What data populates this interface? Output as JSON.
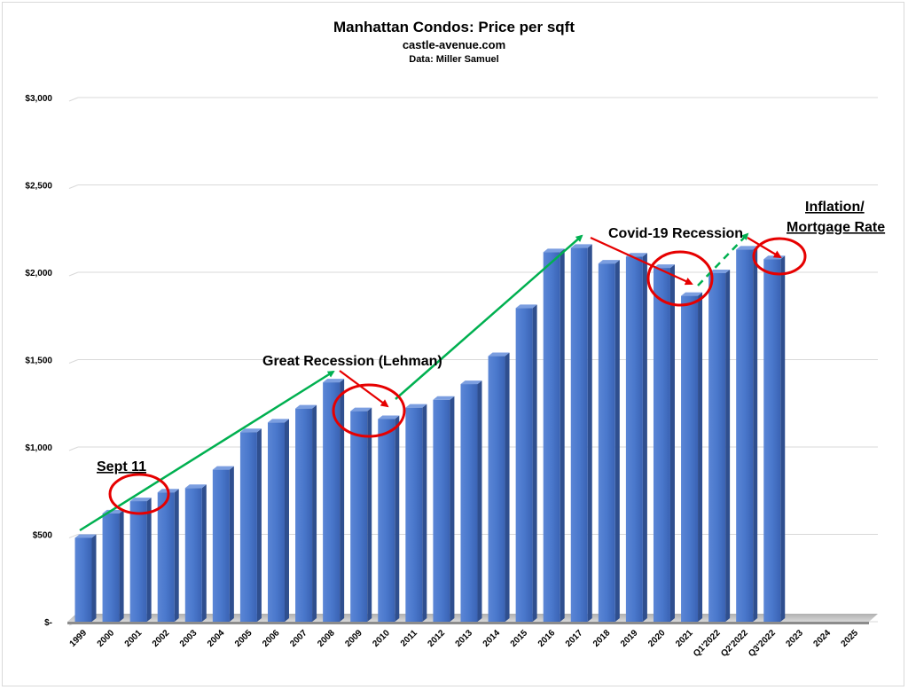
{
  "chart_data": {
    "type": "bar",
    "title": "Manhattan Condos: Price per sqft",
    "subtitle": "castle-avenue.com",
    "source": "Data: Miller Samuel",
    "xlabel": "",
    "ylabel": "",
    "ylim": [
      0,
      3000
    ],
    "yticks": [
      "$-",
      "$500",
      "$1,000",
      "$1,500",
      "$2,000",
      "$2,500",
      "$3,000"
    ],
    "grid": true,
    "categories": [
      "1999",
      "2000",
      "2001",
      "2002",
      "2003",
      "2004",
      "2005",
      "2006",
      "2007",
      "2008",
      "2009",
      "2010",
      "2011",
      "2012",
      "2013",
      "2014",
      "2015",
      "2016",
      "2017",
      "2018",
      "2019",
      "2020",
      "2021",
      "Q1'2022",
      "Q2'2022",
      "Q3'2022",
      "2023",
      "2024",
      "2025"
    ],
    "values": [
      480,
      620,
      690,
      740,
      765,
      870,
      1085,
      1140,
      1220,
      1370,
      1205,
      1160,
      1225,
      1270,
      1360,
      1520,
      1795,
      2115,
      2140,
      2050,
      2090,
      2025,
      1865,
      1995,
      2130,
      2075,
      null,
      null,
      null
    ],
    "bar_color": "#4472c4",
    "annotations": [
      {
        "text": "Sept 11"
      },
      {
        "text": "Great Recession (Lehman)"
      },
      {
        "text": "Covid-19 Recession"
      },
      {
        "text": "Inflation/"
      },
      {
        "text": "Mortgage Rate"
      }
    ]
  }
}
